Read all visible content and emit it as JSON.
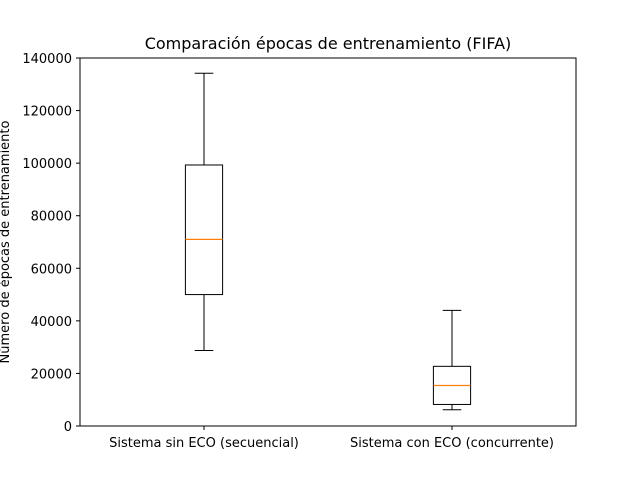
{
  "chart_data": {
    "type": "box",
    "title": "Comparación épocas de entrenamiento (FIFA)",
    "xlabel": "",
    "ylabel": "Número de épocas de entrenamiento",
    "ylim": [
      0,
      140000
    ],
    "yticks": [
      0,
      20000,
      40000,
      60000,
      80000,
      100000,
      120000,
      140000
    ],
    "grid": false,
    "categories": [
      "Sistema sin ECO (secuencial)",
      "Sistema con ECO (concurrente)"
    ],
    "boxes": [
      {
        "category": "Sistema sin ECO (secuencial)",
        "whisker_low": 28700,
        "q1": 50000,
        "median": 71000,
        "q3": 99300,
        "whisker_high": 134200
      },
      {
        "category": "Sistema con ECO (concurrente)",
        "whisker_low": 6200,
        "q1": 8200,
        "median": 15400,
        "q3": 22700,
        "whisker_high": 44000
      }
    ],
    "colors": {
      "box": "#000000",
      "median": "#ff7f0e"
    }
  }
}
